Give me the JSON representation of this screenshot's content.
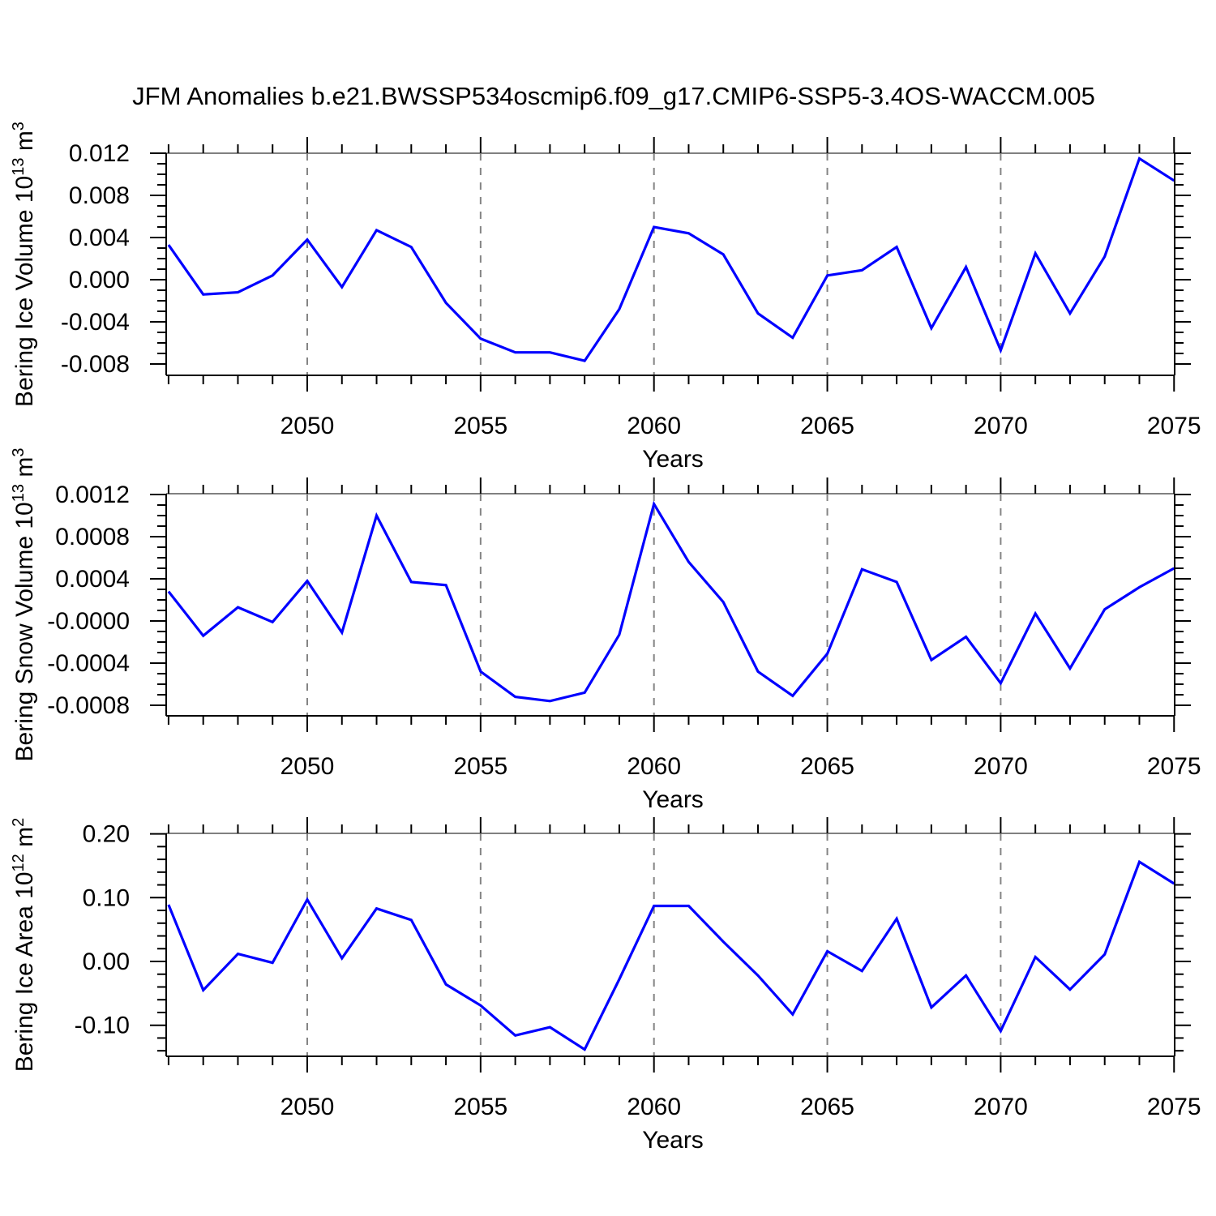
{
  "title": "JFM Anomalies b.e21.BWSSP534oscmip6.f09_g17.CMIP6-SSP5-3.4OS-WACCM.005",
  "colors": {
    "line": "#0000ff",
    "axis": "#000000",
    "top_frame": "#808080",
    "grid": "#848484"
  },
  "x_axis": {
    "label": "Years",
    "tick_labels": [
      "2050",
      "2055",
      "2060",
      "2065",
      "2070",
      "2075"
    ],
    "major_ticks": [
      2050,
      2055,
      2060,
      2065,
      2070,
      2075
    ],
    "gridlines": [
      2050,
      2055,
      2060,
      2065,
      2070
    ],
    "range": [
      2045.93,
      2075
    ]
  },
  "chart_data": [
    {
      "type": "line",
      "name": "bering-ice-volume",
      "ylabel_plain": "Bering Ice Volume 10^13 m^3",
      "ylabel_parts": [
        {
          "text": "Bering Ice Volume 10"
        },
        {
          "text": "13",
          "sup": true
        },
        {
          "text": " m"
        },
        {
          "text": "3",
          "sup": true
        }
      ],
      "xlabel": "Years",
      "ylim": [
        -0.0091,
        0.012
      ],
      "yticks": [
        0.012,
        0.008,
        0.004,
        0.0,
        -0.004,
        -0.008
      ],
      "ytick_labels": [
        "0.012",
        "0.008",
        "0.004",
        "0.000",
        "-0.004",
        "-0.008"
      ],
      "y_minor_step": 0.001,
      "x": [
        2046,
        2047,
        2048,
        2049,
        2050,
        2051,
        2052,
        2053,
        2054,
        2055,
        2056,
        2057,
        2058,
        2059,
        2060,
        2061,
        2062,
        2063,
        2064,
        2065,
        2066,
        2067,
        2068,
        2069,
        2070,
        2071,
        2072,
        2073,
        2074,
        2075
      ],
      "values": [
        0.0033,
        -0.0014,
        -0.0012,
        0.0004,
        0.0038,
        -0.0007,
        0.0047,
        0.0031,
        -0.0022,
        -0.0056,
        -0.0069,
        -0.0069,
        -0.0077,
        -0.0028,
        0.005,
        0.0044,
        0.0024,
        -0.0032,
        -0.0055,
        0.0004,
        0.0009,
        0.0031,
        -0.0046,
        0.0012,
        -0.0067,
        0.0025,
        -0.0032,
        0.0022,
        0.0115,
        0.0094
      ]
    },
    {
      "type": "line",
      "name": "bering-snow-volume",
      "ylabel_plain": "Bering Snow Volume 10^13 m^3",
      "ylabel_parts": [
        {
          "text": "Bering Snow Volume 10"
        },
        {
          "text": "13",
          "sup": true
        },
        {
          "text": " m"
        },
        {
          "text": "3",
          "sup": true
        }
      ],
      "xlabel": "Years",
      "ylim": [
        -0.0009,
        0.00121
      ],
      "yticks": [
        0.0012,
        0.0008,
        0.0004,
        -0.0,
        -0.0004,
        -0.0008
      ],
      "ytick_labels": [
        "0.0012",
        "0.0008",
        "0.0004",
        "-0.0000",
        "-0.0004",
        "-0.0008"
      ],
      "y_minor_step": 0.0001,
      "x": [
        2046,
        2047,
        2048,
        2049,
        2050,
        2051,
        2052,
        2053,
        2054,
        2055,
        2056,
        2057,
        2058,
        2059,
        2060,
        2061,
        2062,
        2063,
        2064,
        2065,
        2066,
        2067,
        2068,
        2069,
        2070,
        2071,
        2072,
        2073,
        2074,
        2075
      ],
      "values": [
        0.00028,
        -0.00014,
        0.00013,
        -1e-05,
        0.00038,
        -0.00011,
        0.001,
        0.00037,
        0.00034,
        -0.00048,
        -0.00072,
        -0.00076,
        -0.00068,
        -0.00013,
        0.00111,
        0.00056,
        0.00018,
        -0.00048,
        -0.00071,
        -0.00031,
        0.00049,
        0.00037,
        -0.00037,
        -0.00015,
        -0.00059,
        7e-05,
        -0.00045,
        0.00011,
        0.00032,
        0.0005
      ]
    },
    {
      "type": "line",
      "name": "bering-ice-area",
      "ylabel_plain": "Bering Ice Area 10^12 m^2",
      "ylabel_parts": [
        {
          "text": "Bering Ice Area 10"
        },
        {
          "text": "12",
          "sup": true
        },
        {
          "text": " m"
        },
        {
          "text": "2",
          "sup": true
        }
      ],
      "xlabel": "Years",
      "ylim": [
        -0.1483,
        0.2
      ],
      "yticks": [
        0.2,
        0.1,
        0.0,
        -0.1
      ],
      "ytick_labels": [
        "0.20",
        "0.10",
        "0.00",
        "-0.10"
      ],
      "y_minor_step": 0.02,
      "x": [
        2046,
        2047,
        2048,
        2049,
        2050,
        2051,
        2052,
        2053,
        2054,
        2055,
        2056,
        2057,
        2058,
        2059,
        2060,
        2061,
        2062,
        2063,
        2064,
        2065,
        2066,
        2067,
        2068,
        2069,
        2070,
        2071,
        2072,
        2073,
        2074,
        2075
      ],
      "values": [
        0.089,
        -0.045,
        0.012,
        -0.002,
        0.097,
        0.005,
        0.083,
        0.065,
        -0.036,
        -0.069,
        -0.116,
        -0.103,
        -0.138,
        -0.028,
        0.087,
        0.087,
        0.031,
        -0.022,
        -0.083,
        0.016,
        -0.015,
        0.067,
        -0.072,
        -0.022,
        -0.109,
        0.007,
        -0.044,
        0.011,
        0.156,
        0.122
      ]
    }
  ]
}
